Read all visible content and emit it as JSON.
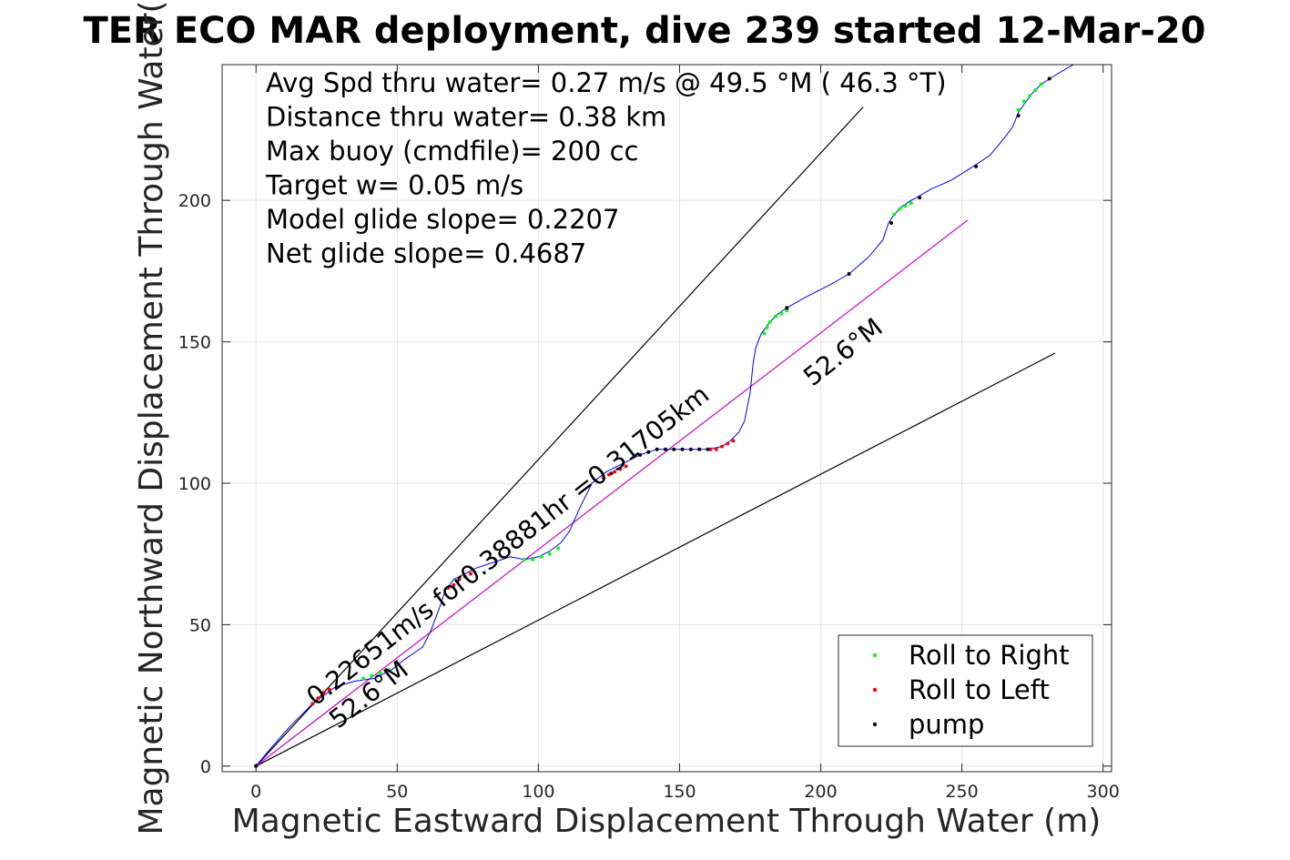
{
  "chart_data": {
    "type": "scatter",
    "title": "TER ECO MAR deployment, dive 239 started 12-Mar-20",
    "xlabel": "Magnetic Eastward Displacement Through Water (m)",
    "ylabel": "Magnetic Northward Displacement Through Water(",
    "xlim": [
      -12,
      303
    ],
    "ylim": [
      -2,
      248
    ],
    "xticks": [
      0,
      50,
      100,
      150,
      200,
      250,
      300
    ],
    "yticks": [
      0,
      50,
      100,
      150,
      200
    ],
    "grid": true,
    "info_lines": [
      "Avg Spd thru water=  0.27 m/s @  49.5 °M ( 46.3 °T)",
      "Distance thru water=  0.38 km",
      "Max buoy (cmdfile)= 200 cc",
      "Target w= 0.05 m/s",
      "Model glide slope= 0.2207",
      "Net glide slope= 0.4687"
    ],
    "annotations": [
      {
        "text": "0.22651m/s for0.38881hr =0.31705km",
        "x": 21,
        "y": 21,
        "angle_deg": 38
      },
      {
        "text": "52.6°M",
        "x": 29,
        "y": 13,
        "angle_deg": 38
      },
      {
        "text": "52.6°M",
        "x": 197,
        "y": 134,
        "angle_deg": 38
      }
    ],
    "reference_lines": [
      {
        "name": "upper envelope",
        "color": "#000000",
        "x": [
          0,
          215
        ],
        "y": [
          0,
          233
        ]
      },
      {
        "name": "lower envelope",
        "color": "#000000",
        "x": [
          0,
          283
        ],
        "y": [
          0,
          146
        ]
      },
      {
        "name": "net heading",
        "color": "#cc00cc",
        "x": [
          0,
          252
        ],
        "y": [
          0,
          193
        ]
      }
    ],
    "track": {
      "color": "#0000ff",
      "x": [
        0,
        5,
        12,
        20,
        28,
        35,
        42,
        48,
        53,
        56,
        59,
        62,
        65,
        67,
        70,
        74,
        78,
        84,
        90,
        95,
        100,
        104,
        108,
        111,
        115,
        119,
        124,
        130,
        136,
        142,
        148,
        154,
        160,
        165,
        168,
        171,
        173,
        175,
        176,
        177,
        179,
        182,
        185,
        188,
        195,
        203,
        210,
        217,
        222,
        224,
        226,
        229,
        232,
        234,
        239,
        246,
        254,
        260,
        265,
        268,
        270,
        272,
        275,
        278,
        281,
        286,
        293
      ],
      "y": [
        0,
        6,
        14,
        22,
        28,
        30,
        31,
        34,
        38,
        40,
        42,
        48,
        56,
        62,
        66,
        68,
        70,
        72,
        74,
        73,
        74,
        76,
        79,
        83,
        92,
        100,
        104,
        107,
        110,
        112,
        112,
        112,
        112,
        113,
        115,
        118,
        122,
        132,
        142,
        148,
        153,
        157,
        160,
        162,
        166,
        170,
        174,
        180,
        186,
        192,
        195,
        198,
        200,
        201,
        204,
        207,
        212,
        216,
        222,
        226,
        231,
        234,
        238,
        241,
        243,
        246,
        250
      ]
    },
    "series": [
      {
        "name": "Roll to Right",
        "color": "#00ff00",
        "x": [
          38,
          41,
          44,
          47,
          95,
          98,
          101,
          104,
          107,
          180,
          181,
          182,
          184,
          186,
          188,
          226,
          228,
          230,
          232,
          270,
          272,
          274,
          276,
          278
        ],
        "y": [
          31,
          32,
          33,
          34,
          73,
          73,
          74,
          75,
          77,
          153,
          155,
          157,
          159,
          160,
          161,
          195,
          197,
          198,
          199,
          232,
          235,
          237,
          239,
          241
        ]
      },
      {
        "name": "Roll to Left",
        "color": "#ff0000",
        "x": [
          0,
          20,
          22,
          24,
          26,
          68,
          70,
          72,
          74,
          76,
          123,
          125,
          127,
          129,
          131,
          161,
          163,
          165,
          167,
          169
        ],
        "y": [
          0,
          22,
          24,
          26,
          27,
          63,
          64,
          66,
          67,
          68,
          102,
          103,
          104,
          105,
          106,
          112,
          112,
          113,
          114,
          115
        ]
      },
      {
        "name": "pump",
        "color": "#000000",
        "x": [
          0,
          136,
          139,
          142,
          145,
          148,
          151,
          154,
          157,
          160,
          188,
          210,
          225,
          235,
          255,
          270,
          281
        ],
        "y": [
          0,
          110,
          111,
          112,
          112,
          112,
          112,
          112,
          112,
          112,
          162,
          174,
          192,
          201,
          212,
          230,
          243
        ]
      }
    ],
    "legend": {
      "placement": "bottom-right",
      "entries": [
        {
          "label": "Roll to Right",
          "color": "#00ff00"
        },
        {
          "label": "Roll to Left",
          "color": "#ff0000"
        },
        {
          "label": "pump",
          "color": "#000000"
        }
      ]
    }
  }
}
